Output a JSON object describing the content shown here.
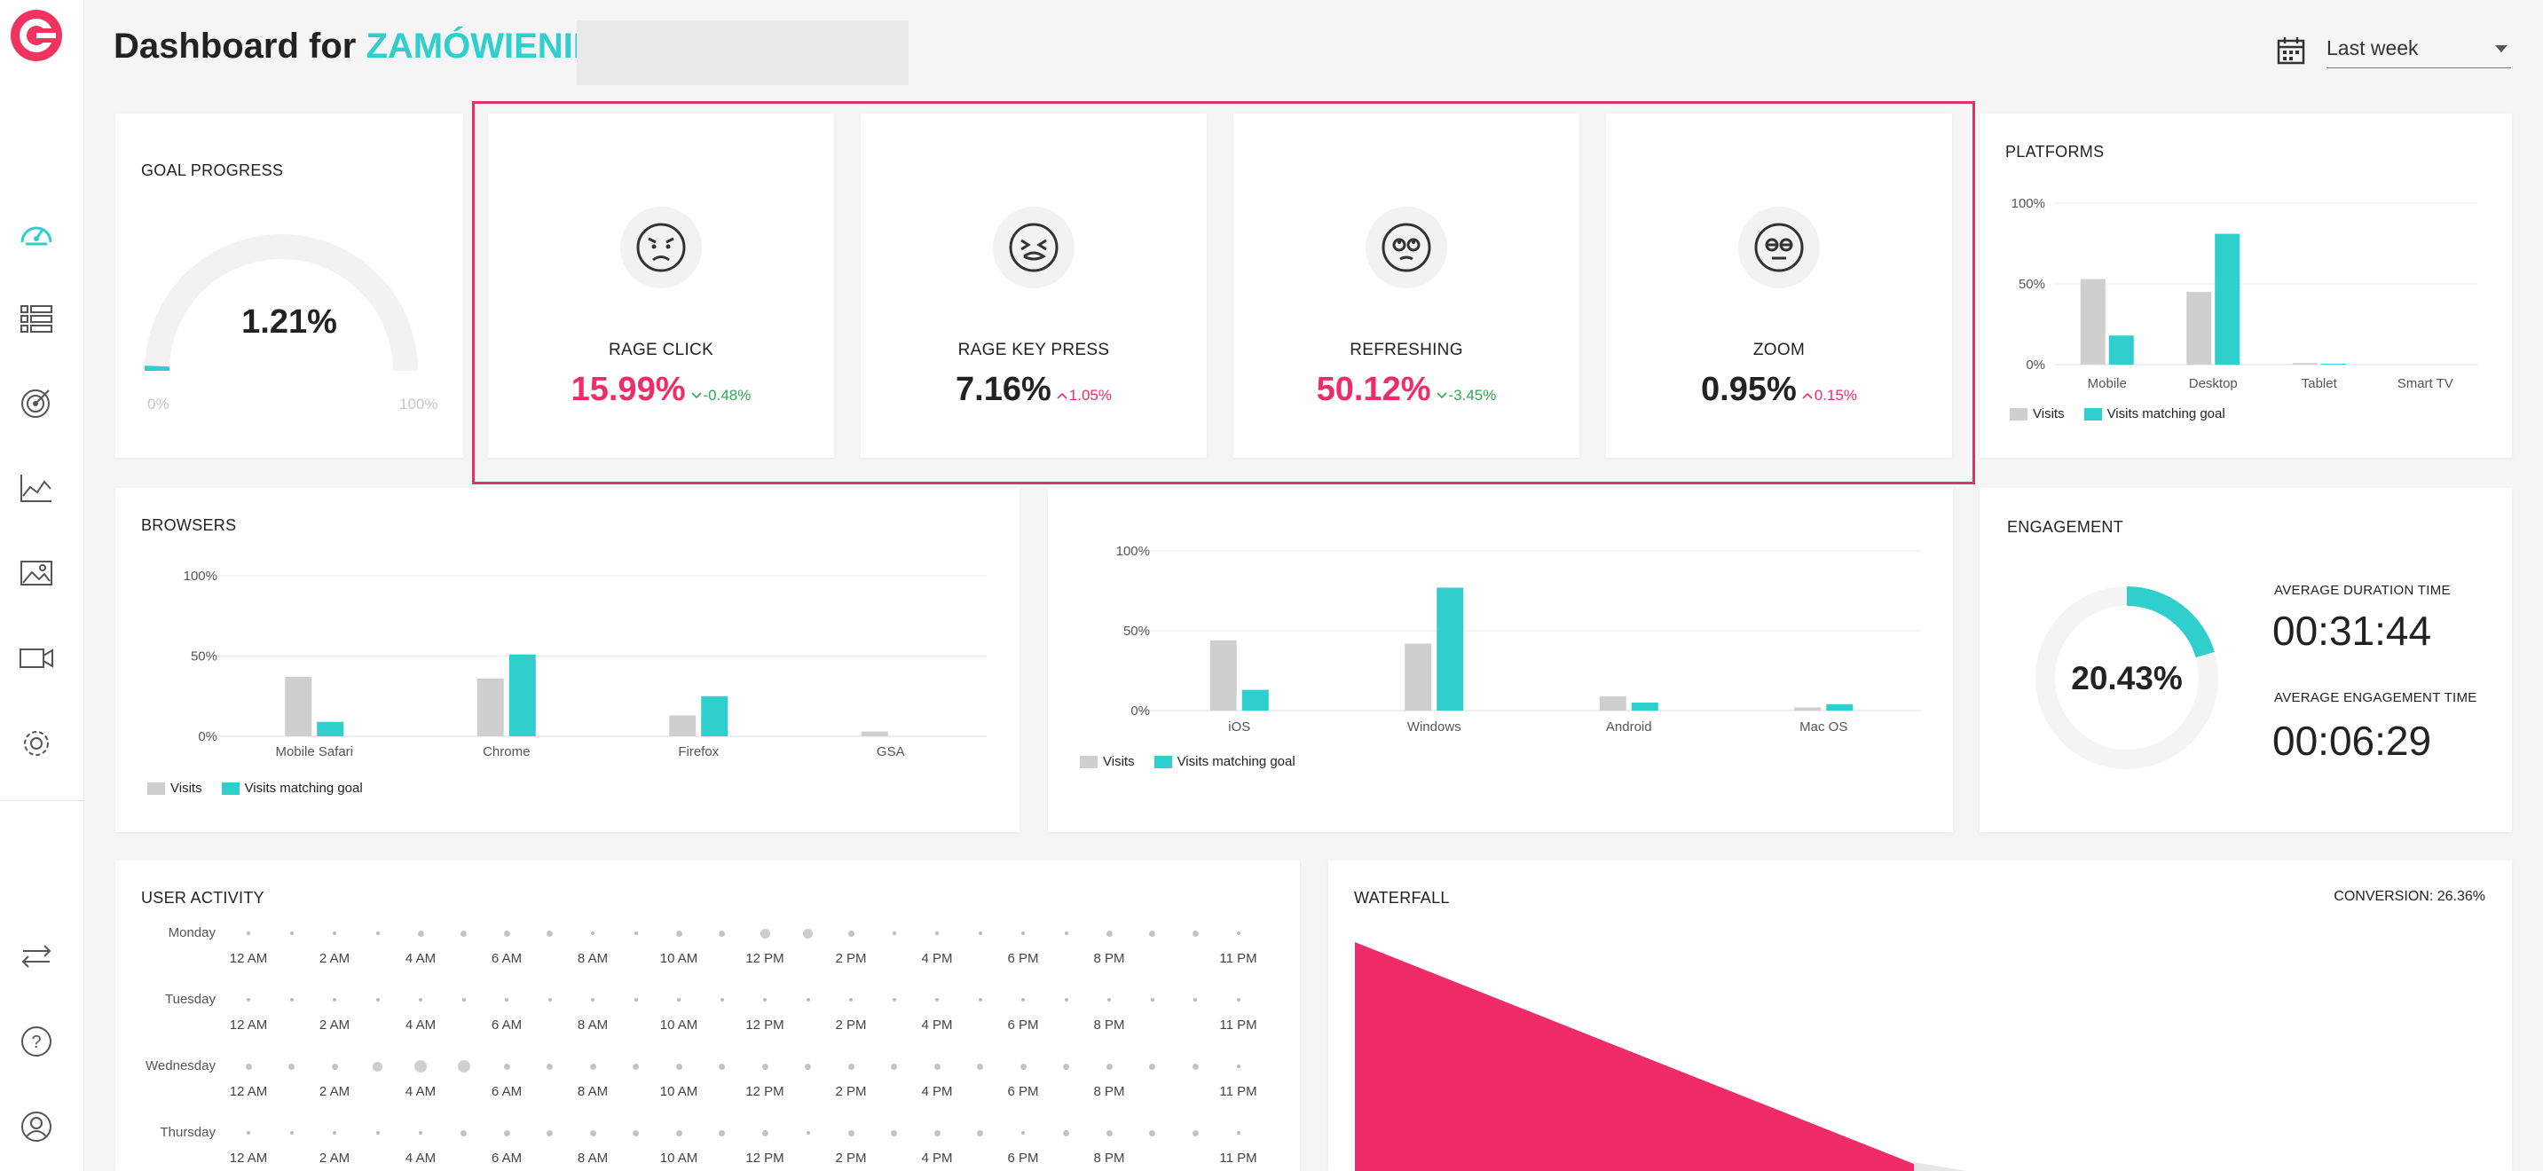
{
  "header": {
    "title_prefix": "Dashboard for",
    "title_highlight": "ZAMÓWIENIE",
    "date_range": "Last week"
  },
  "colors": {
    "accent": "#2ecfcc",
    "pink": "#f02c68",
    "grey_bar": "#cfcfcf",
    "green": "#2fa84f"
  },
  "sidebar": {
    "items": [
      {
        "icon": "logo-icon"
      },
      {
        "icon": "dashboard-gauge-icon"
      },
      {
        "icon": "list-icon"
      },
      {
        "icon": "target-icon"
      },
      {
        "icon": "area-chart-icon"
      },
      {
        "icon": "image-gallery-icon"
      },
      {
        "icon": "video-camera-icon"
      },
      {
        "icon": "gear-icon"
      },
      {
        "icon": "switch-arrows-icon"
      },
      {
        "icon": "help-icon"
      },
      {
        "icon": "user-icon"
      }
    ]
  },
  "goal": {
    "title": "GOAL PROGRESS",
    "value": "1.21%",
    "min_label": "0%",
    "max_label": "100%",
    "fraction": 0.0121
  },
  "metrics": [
    {
      "name": "RAGE CLICK",
      "value": "15.99%",
      "delta": "-0.48%",
      "direction": "down",
      "value_color": "pink",
      "delta_color": "green",
      "icon": "angry-face-icon"
    },
    {
      "name": "RAGE KEY PRESS",
      "value": "7.16%",
      "delta": "1.05%",
      "direction": "up",
      "value_color": "dark",
      "delta_color": "pink",
      "icon": "frustrated-face-icon"
    },
    {
      "name": "REFRESHING",
      "value": "50.12%",
      "delta": "-3.45%",
      "direction": "down",
      "value_color": "pink",
      "delta_color": "green",
      "icon": "rolling-eyes-face-icon"
    },
    {
      "name": "ZOOM",
      "value": "0.95%",
      "delta": "0.15%",
      "direction": "up",
      "value_color": "dark",
      "delta_color": "pink",
      "icon": "squinting-face-icon"
    }
  ],
  "platforms": {
    "title": "PLATFORMS",
    "legend": [
      "Visits",
      "Visits matching goal"
    ]
  },
  "browsers": {
    "title": "BROWSERS",
    "legend": [
      "Visits",
      "Visits matching goal"
    ]
  },
  "os": {
    "legend": [
      "Visits",
      "Visits matching goal"
    ]
  },
  "engagement": {
    "title": "ENGAGEMENT",
    "value": "20.43%",
    "fraction": 0.2043,
    "avg_duration_label": "AVERAGE DURATION TIME",
    "avg_duration": "00:31:44",
    "avg_engagement_label": "AVERAGE ENGAGEMENT TIME",
    "avg_engagement": "00:06:29"
  },
  "user_activity": {
    "title": "USER ACTIVITY",
    "days": [
      "Monday",
      "Tuesday",
      "Wednesday",
      "Thursday"
    ],
    "hour_labels": [
      "12 AM",
      "2 AM",
      "4 AM",
      "6 AM",
      "8 AM",
      "10 AM",
      "12 PM",
      "2 PM",
      "4 PM",
      "6 PM",
      "8 PM",
      "11 PM"
    ],
    "intensity": [
      [
        1,
        1,
        1,
        1,
        2,
        2,
        2,
        2,
        1,
        1,
        2,
        2,
        3,
        3,
        2,
        1,
        1,
        1,
        1,
        1,
        2,
        2,
        2,
        1
      ],
      [
        1,
        1,
        1,
        1,
        1,
        1,
        1,
        1,
        1,
        1,
        1,
        1,
        1,
        1,
        1,
        1,
        1,
        1,
        1,
        1,
        1,
        1,
        1,
        1
      ],
      [
        2,
        2,
        2,
        3,
        4,
        4,
        2,
        2,
        2,
        2,
        2,
        2,
        2,
        2,
        2,
        2,
        2,
        2,
        2,
        2,
        2,
        2,
        2,
        1
      ],
      [
        1,
        1,
        1,
        1,
        1,
        2,
        2,
        2,
        2,
        2,
        2,
        2,
        2,
        1,
        2,
        2,
        2,
        2,
        1,
        2,
        2,
        2,
        2,
        1
      ]
    ]
  },
  "waterfall": {
    "title": "WATERFALL",
    "conversion": "CONVERSION: 26.36%"
  },
  "chart_data": [
    {
      "type": "bar",
      "title": "PLATFORMS",
      "categories": [
        "Mobile",
        "Desktop",
        "Tablet",
        "Smart TV"
      ],
      "y_ticks": [
        "100%",
        "50%",
        "0%"
      ],
      "ylim": [
        0,
        100
      ],
      "series": [
        {
          "name": "Visits",
          "values": [
            53,
            45,
            1,
            0
          ]
        },
        {
          "name": "Visits matching goal",
          "values": [
            18,
            81,
            0.5,
            0
          ]
        }
      ]
    },
    {
      "type": "bar",
      "title": "BROWSERS",
      "categories": [
        "Mobile Safari",
        "Chrome",
        "Firefox",
        "GSA"
      ],
      "y_ticks": [
        "100%",
        "50%",
        "0%"
      ],
      "ylim": [
        0,
        100
      ],
      "series": [
        {
          "name": "Visits",
          "values": [
            37,
            36,
            13,
            3
          ]
        },
        {
          "name": "Visits matching goal",
          "values": [
            9,
            51,
            25,
            0
          ]
        }
      ]
    },
    {
      "type": "bar",
      "title": "",
      "categories": [
        "iOS",
        "Windows",
        "Android",
        "Mac OS"
      ],
      "y_ticks": [
        "100%",
        "50%",
        "0%"
      ],
      "ylim": [
        0,
        100
      ],
      "series": [
        {
          "name": "Visits",
          "values": [
            44,
            42,
            9,
            2
          ]
        },
        {
          "name": "Visits matching goal",
          "values": [
            13,
            77,
            5,
            4
          ]
        }
      ]
    }
  ]
}
